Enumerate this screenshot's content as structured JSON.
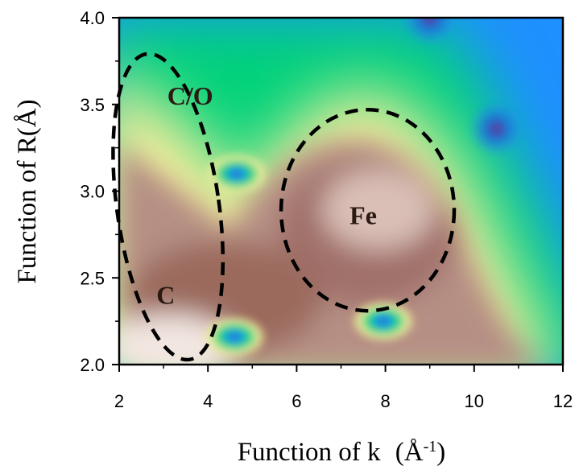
{
  "chart_data": {
    "type": "heatmap",
    "title": "",
    "xlabel": "Function of k",
    "xlabel_unit": "(Å",
    "xlabel_unit_exp": "-1",
    "xlabel_unit_close": ")",
    "ylabel": "Function of R(Å)",
    "xlim": [
      2,
      12
    ],
    "ylim": [
      2.0,
      4.0
    ],
    "x_ticks": [
      "2",
      "4",
      "6",
      "8",
      "10",
      "12"
    ],
    "y_ticks": [
      "2.0",
      "2.5",
      "3.0",
      "3.5",
      "4.0"
    ],
    "grid": false,
    "colormap": [
      "#f7eeea",
      "#c9a49a",
      "#8f5a48",
      "#f4ec9c",
      "#00d27a",
      "#1e90ff",
      "#4b2a8a"
    ],
    "features": [
      {
        "k": 4.6,
        "R": 2.16,
        "kind": "minimum"
      },
      {
        "k": 7.95,
        "R": 2.25,
        "kind": "minimum"
      },
      {
        "k": 4.65,
        "R": 3.1,
        "kind": "minimum"
      },
      {
        "k": 9.0,
        "R": 4.0,
        "kind": "minimum"
      },
      {
        "k": 10.5,
        "R": 3.36,
        "kind": "minimum"
      }
    ],
    "annotations": [
      {
        "text": "C/O",
        "k": 3.6,
        "R": 3.5
      },
      {
        "text": "C",
        "k": 3.05,
        "R": 2.35
      },
      {
        "text": "Fe",
        "k": 7.5,
        "R": 2.81
      }
    ],
    "regions": [
      {
        "label": "C/O + C",
        "center_k": 3.1,
        "center_R": 2.91,
        "radius_k": 1.15,
        "radius_R": 0.89,
        "rotation_deg": 8
      },
      {
        "label": "Fe",
        "center_k": 7.6,
        "center_R": 2.89,
        "radius_k": 1.95,
        "radius_R": 0.58,
        "rotation_deg": 0
      }
    ]
  }
}
